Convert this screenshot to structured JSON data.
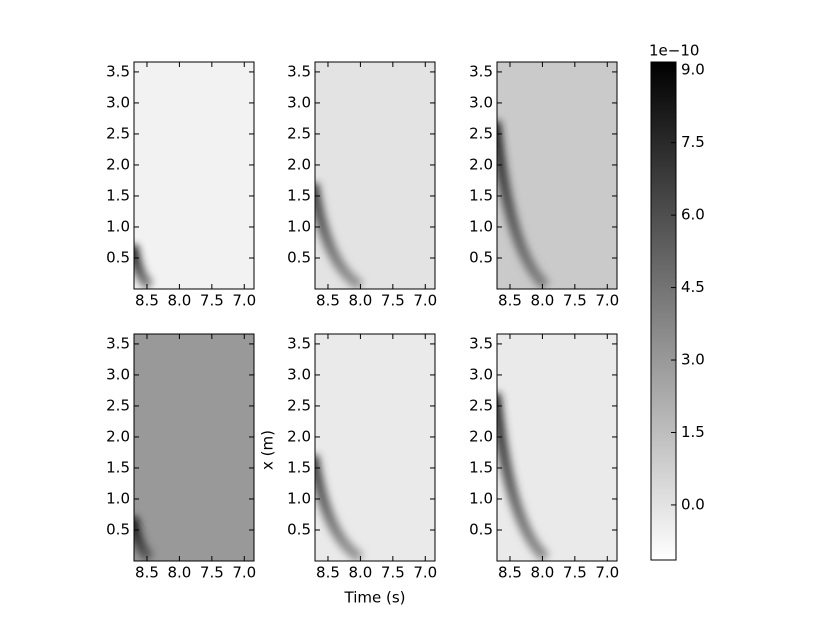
{
  "chart_data": {
    "type": "heatmap",
    "x_label": "Time (s)",
    "y_label": "x (m)",
    "xlim": [
      8.7,
      6.85
    ],
    "xticks": [
      {
        "value": 8.5,
        "label": "8.5"
      },
      {
        "value": 8.0,
        "label": "8.0"
      },
      {
        "value": 7.5,
        "label": "7.5"
      },
      {
        "value": 7.0,
        "label": "7.0"
      }
    ],
    "ylim": [
      0,
      3.66
    ],
    "yticks": [
      {
        "value": 0.5,
        "label": "0.5"
      },
      {
        "value": 1.0,
        "label": "1.0"
      },
      {
        "value": 1.5,
        "label": "1.5"
      },
      {
        "value": 2.0,
        "label": "2.0"
      },
      {
        "value": 2.5,
        "label": "2.5"
      },
      {
        "value": 3.0,
        "label": "3.0"
      },
      {
        "value": 3.5,
        "label": "3.5"
      }
    ],
    "panels": [
      {
        "background": -0.6,
        "peak": 9.0,
        "front_height": 0.7,
        "arrival_time": 8.45
      },
      {
        "background": 0.0,
        "peak": 7.0,
        "front_height": 1.7,
        "arrival_time": 8.0
      },
      {
        "background": 1.0,
        "peak": 8.0,
        "front_height": 2.7,
        "arrival_time": 7.95
      },
      {
        "background": 3.0,
        "peak": 9.0,
        "front_height": 0.7,
        "arrival_time": 8.45
      },
      {
        "background": -0.3,
        "peak": 7.0,
        "front_height": 1.7,
        "arrival_time": 8.0
      },
      {
        "background": -0.3,
        "peak": 8.0,
        "front_height": 2.7,
        "arrival_time": 7.95
      }
    ],
    "colorbar": {
      "lim": [
        -1.14,
        9.17
      ],
      "offset_label": "1e−10",
      "ticks": [
        {
          "value": 0.0,
          "label": "0.0"
        },
        {
          "value": 1.5,
          "label": "1.5"
        },
        {
          "value": 3.0,
          "label": "3.0"
        },
        {
          "value": 4.5,
          "label": "4.5"
        },
        {
          "value": 6.0,
          "label": "6.0"
        },
        {
          "value": 7.5,
          "label": "7.5"
        },
        {
          "value": 9.0,
          "label": "9.0"
        }
      ]
    }
  }
}
